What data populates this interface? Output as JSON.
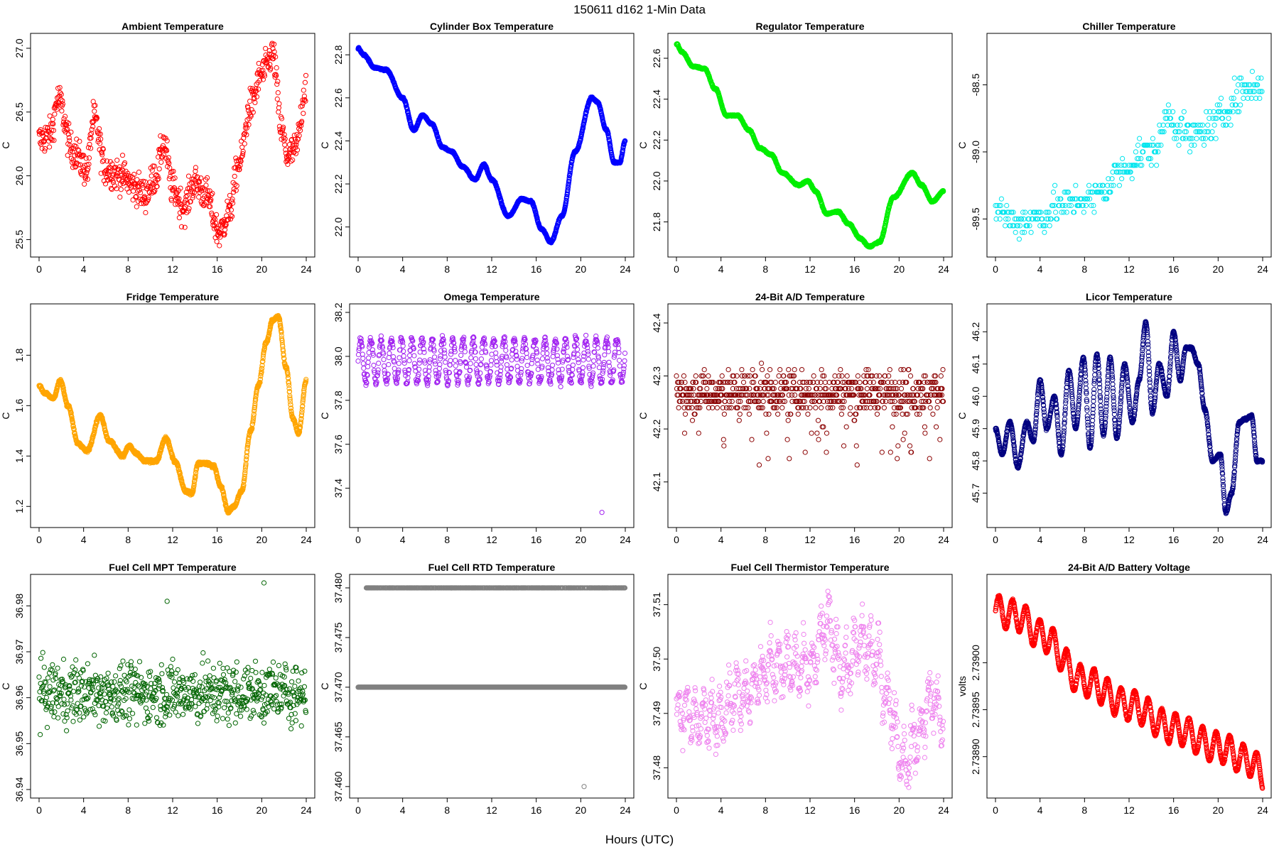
{
  "figure": {
    "title": "150611    d162    1-Min Data",
    "xlabel": "Hours (UTC)"
  },
  "chart_data": [
    {
      "type": "scatter",
      "title": "Ambient Temperature",
      "ylabel": "C",
      "color": "#ff0000",
      "xlim": [
        0,
        24
      ],
      "ylim": [
        25.43,
        27.05
      ],
      "xticks": [
        0,
        4,
        8,
        12,
        16,
        20,
        24
      ],
      "yticks": [
        25.5,
        26.0,
        26.5,
        27.0
      ],
      "ytick_labels": [
        "25.5",
        "26.0",
        "26.5",
        "27.0"
      ],
      "noise": 0.13,
      "density": 1.0,
      "x": [
        0,
        1,
        1.7,
        3,
        4.3,
        4.9,
        6,
        7.5,
        8.5,
        9.5,
        10.5,
        11.2,
        12,
        13,
        14,
        15,
        16.2,
        17,
        18,
        19,
        20,
        21,
        21.8,
        22.3,
        23,
        24
      ],
      "y": [
        26.28,
        26.32,
        26.6,
        26.2,
        26.05,
        26.45,
        26.05,
        26.0,
        25.92,
        25.85,
        26.0,
        26.25,
        25.9,
        25.75,
        25.95,
        25.85,
        25.55,
        25.7,
        26.1,
        26.55,
        26.8,
        26.95,
        26.35,
        26.15,
        26.2,
        26.7
      ]
    },
    {
      "type": "scatter",
      "title": "Cylinder Box Temperature",
      "ylabel": "C",
      "color": "#0000ff",
      "xlim": [
        0,
        24
      ],
      "ylim": [
        21.9,
        22.86
      ],
      "xticks": [
        0,
        4,
        8,
        12,
        16,
        20,
        24
      ],
      "yticks": [
        22.0,
        22.2,
        22.4,
        22.6,
        22.8
      ],
      "ytick_labels": [
        "22.0",
        "22.2",
        "22.4",
        "22.6",
        "22.8"
      ],
      "noise": 0.004,
      "density": 2.0,
      "x": [
        0,
        0.5,
        1.5,
        2.5,
        4,
        5,
        5.8,
        6.6,
        7.6,
        8.4,
        9.4,
        10.5,
        11.3,
        12,
        13.5,
        14.7,
        15.5,
        16.5,
        17.3,
        18.3,
        19.5,
        21,
        21.5,
        22.3,
        23,
        23.5,
        24
      ],
      "y": [
        22.83,
        22.8,
        22.74,
        22.73,
        22.6,
        22.45,
        22.52,
        22.48,
        22.37,
        22.35,
        22.28,
        22.22,
        22.29,
        22.22,
        22.05,
        22.13,
        22.12,
        21.99,
        21.93,
        22.05,
        22.35,
        22.6,
        22.58,
        22.45,
        22.3,
        22.3,
        22.4
      ]
    },
    {
      "type": "scatter",
      "title": "Regulator Temperature",
      "ylabel": "C",
      "color": "#00ee00",
      "xlim": [
        0,
        24
      ],
      "ylim": [
        21.67,
        22.68
      ],
      "xticks": [
        0,
        4,
        8,
        12,
        16,
        20,
        24
      ],
      "yticks": [
        21.8,
        22.0,
        22.2,
        22.4,
        22.6
      ],
      "ytick_labels": [
        "21.8",
        "22.0",
        "22.2",
        "22.4",
        "22.6"
      ],
      "noise": 0.004,
      "density": 2.0,
      "x": [
        0,
        0.5,
        1.5,
        2.5,
        3.5,
        4.5,
        5.5,
        6.5,
        7.5,
        8.5,
        9.5,
        11,
        11.8,
        12.5,
        13.5,
        14.5,
        15.5,
        16.5,
        17.3,
        18.2,
        19.5,
        21.2,
        22,
        23,
        24
      ],
      "y": [
        22.67,
        22.63,
        22.56,
        22.55,
        22.45,
        22.32,
        22.32,
        22.25,
        22.16,
        22.13,
        22.04,
        21.98,
        22.0,
        21.95,
        21.84,
        21.85,
        21.79,
        21.72,
        21.68,
        21.7,
        21.92,
        22.04,
        21.98,
        21.9,
        21.95
      ]
    },
    {
      "type": "scatter",
      "title": "Chiller Temperature",
      "ylabel": "C",
      "color": "#00e5ee",
      "xlim": [
        0,
        24
      ],
      "ylim": [
        -89.72,
        -88.18
      ],
      "xticks": [
        0,
        4,
        8,
        12,
        16,
        20,
        24
      ],
      "yticks": [
        -89.5,
        -89.0,
        -88.5
      ],
      "ytick_labels": [
        "-89.5",
        "-89.0",
        "-88.5"
      ],
      "noise": 0.12,
      "density": 0.55,
      "quantize": 0.05,
      "x": [
        0,
        2,
        3,
        4.5,
        5.5,
        7,
        8.5,
        10,
        11,
        12,
        13,
        14.5,
        15.5,
        16.5,
        17.5,
        18.5,
        19.5,
        20.5,
        21.5,
        22.5,
        24
      ],
      "y": [
        -89.42,
        -89.52,
        -89.5,
        -89.48,
        -89.4,
        -89.38,
        -89.35,
        -89.28,
        -89.15,
        -89.1,
        -89.02,
        -88.98,
        -88.72,
        -88.82,
        -88.9,
        -88.85,
        -88.8,
        -88.72,
        -88.6,
        -88.52,
        -88.52
      ]
    },
    {
      "type": "scatter",
      "title": "Fridge Temperature",
      "ylabel": "C",
      "color": "#ffa500",
      "xlim": [
        0,
        24
      ],
      "ylim": [
        1.15,
        1.97
      ],
      "xticks": [
        0,
        4,
        8,
        12,
        16,
        20,
        24
      ],
      "yticks": [
        1.2,
        1.4,
        1.6,
        1.8
      ],
      "ytick_labels": [
        "1.2",
        "1.4",
        "1.6",
        "1.8"
      ],
      "noise": 0.006,
      "density": 2.0,
      "x": [
        0,
        0.5,
        1.3,
        1.9,
        2.6,
        3.5,
        4.3,
        5.5,
        6.3,
        7.5,
        8.1,
        8.7,
        9.5,
        10.5,
        11.4,
        12.2,
        13.2,
        13.7,
        14.3,
        15,
        15.7,
        16.3,
        17,
        17.5,
        18.2,
        19,
        19.7,
        20.4,
        21,
        21.5,
        22.2,
        22.8,
        23.3,
        24
      ],
      "y": [
        1.68,
        1.65,
        1.63,
        1.7,
        1.6,
        1.45,
        1.42,
        1.56,
        1.46,
        1.4,
        1.44,
        1.41,
        1.38,
        1.38,
        1.47,
        1.38,
        1.26,
        1.25,
        1.37,
        1.37,
        1.36,
        1.28,
        1.18,
        1.2,
        1.26,
        1.5,
        1.68,
        1.85,
        1.94,
        1.95,
        1.75,
        1.55,
        1.49,
        1.7
      ]
    },
    {
      "type": "scatter",
      "title": "Omega Temperature",
      "ylabel": "C",
      "color": "#a020f0",
      "xlim": [
        0,
        24
      ],
      "ylim": [
        37.26,
        38.2
      ],
      "xticks": [
        0,
        4,
        8,
        12,
        16,
        20,
        24
      ],
      "yticks": [
        37.4,
        37.6,
        37.8,
        38.0,
        38.2
      ],
      "ytick_labels": [
        "37.4",
        "37.6",
        "37.8",
        "38.0",
        "38.2"
      ],
      "noise": 0.018,
      "density": 1.3,
      "osc": {
        "amp": 0.1,
        "period": 0.92
      },
      "outliers": [
        [
          21.9,
          37.29
        ]
      ],
      "x": [
        0,
        24
      ],
      "y": [
        37.98,
        37.98
      ]
    },
    {
      "type": "scatter",
      "title": "24-Bit A/D Temperature",
      "ylabel": "C",
      "color": "#8b0000",
      "xlim": [
        0,
        24
      ],
      "ylim": [
        42.03,
        42.42
      ],
      "xticks": [
        0,
        4,
        8,
        12,
        16,
        20,
        24
      ],
      "yticks": [
        42.1,
        42.2,
        42.3,
        42.4
      ],
      "ytick_labels": [
        "42.1",
        "42.2",
        "42.3",
        "42.4"
      ],
      "noise": 0.04,
      "density": 1.3,
      "quantize": 0.012,
      "dips": 0.06,
      "x": [
        0,
        24
      ],
      "y": [
        42.27,
        42.27
      ]
    },
    {
      "type": "scatter",
      "title": "Licor Temperature",
      "ylabel": "C",
      "color": "#000080",
      "xlim": [
        0,
        24
      ],
      "ylim": [
        45.62,
        46.26
      ],
      "xticks": [
        0,
        4,
        8,
        12,
        16,
        20,
        24
      ],
      "yticks": [
        45.7,
        45.8,
        45.9,
        46.0,
        46.1,
        46.2
      ],
      "ytick_labels": [
        "45.7",
        "45.8",
        "45.9",
        "46.0",
        "46.1",
        "46.2"
      ],
      "noise": 0.004,
      "density": 2.0,
      "x": [
        0,
        0.6,
        1.3,
        2,
        2.8,
        3.4,
        4,
        4.6,
        5.3,
        5.9,
        6.6,
        7.2,
        7.9,
        8.5,
        9.1,
        9.7,
        10.3,
        10.9,
        11.6,
        12.3,
        12.9,
        13.5,
        14.1,
        14.7,
        15.4,
        16,
        16.6,
        17.1,
        17.6,
        18.2,
        18.8,
        19.5,
        20.2,
        20.7,
        21.2,
        21.9,
        22.5,
        23,
        23.5,
        24
      ],
      "y": [
        45.9,
        45.82,
        45.92,
        45.78,
        45.92,
        45.86,
        46.05,
        45.9,
        46.0,
        45.82,
        46.08,
        45.9,
        46.12,
        45.84,
        46.13,
        45.88,
        46.12,
        45.87,
        46.1,
        45.92,
        46.05,
        46.23,
        45.95,
        46.1,
        46.0,
        46.2,
        46.05,
        46.15,
        46.15,
        46.1,
        45.96,
        45.8,
        45.82,
        45.64,
        45.7,
        45.92,
        45.93,
        45.94,
        45.8,
        45.8
      ]
    },
    {
      "type": "scatter",
      "title": "Fuel Cell MPT Temperature",
      "ylabel": "C",
      "color": "#006400",
      "xlim": [
        0,
        24
      ],
      "ylim": [
        36.94,
        36.985
      ],
      "xticks": [
        0,
        4,
        8,
        12,
        16,
        20,
        24
      ],
      "yticks": [
        36.94,
        36.95,
        36.96,
        36.97,
        36.98
      ],
      "ytick_labels": [
        "36.94",
        "36.95",
        "36.96",
        "36.97",
        "36.98"
      ],
      "noise": 0.0065,
      "density": 1.0,
      "outliers": [
        [
          20.2,
          36.985
        ],
        [
          11.5,
          36.981
        ]
      ],
      "x": [
        0,
        24
      ],
      "y": [
        36.961,
        36.961
      ]
    },
    {
      "type": "scatter",
      "title": "Fuel Cell RTD Temperature",
      "ylabel": "C",
      "color": "#808080",
      "xlim": [
        0,
        24
      ],
      "ylim": [
        37.4597,
        37.4805
      ],
      "xticks": [
        0,
        4,
        8,
        12,
        16,
        20,
        24
      ],
      "yticks": [
        37.46,
        37.465,
        37.47,
        37.475,
        37.48
      ],
      "ytick_labels": [
        "37.460",
        "37.465",
        "37.470",
        "37.475",
        "37.480"
      ],
      "levels": [
        37.47,
        37.48
      ],
      "level_top_start": 0.6,
      "outliers": [
        [
          20.3,
          37.46
        ]
      ],
      "x": [
        0,
        24
      ],
      "y": [
        37.47,
        37.47
      ]
    },
    {
      "type": "scatter",
      "title": "Fuel Cell Thermistor Temperature",
      "ylabel": "C",
      "color": "#ee82ee",
      "xlim": [
        0,
        24
      ],
      "ylim": [
        37.476,
        37.514
      ],
      "xticks": [
        0,
        4,
        8,
        12,
        16,
        20,
        24
      ],
      "yticks": [
        37.48,
        37.49,
        37.5,
        37.51
      ],
      "ytick_labels": [
        "37.48",
        "37.49",
        "37.50",
        "37.51"
      ],
      "noise": 0.0035,
      "density": 1.2,
      "osc": {
        "amp": 0.004,
        "period": 0.75
      },
      "x": [
        0,
        3,
        6,
        9,
        12,
        13.5,
        15,
        16.7,
        18,
        19,
        20.5,
        21.5,
        23,
        24
      ],
      "y": [
        37.49,
        37.489,
        37.494,
        37.499,
        37.498,
        37.506,
        37.498,
        37.503,
        37.5,
        37.492,
        37.481,
        37.485,
        37.493,
        37.488
      ]
    },
    {
      "type": "scatter",
      "title": "24-Bit A/D Battery Voltage",
      "ylabel": "volts",
      "color": "#ff0000",
      "xlim": [
        0,
        24
      ],
      "ylim": [
        2.738865,
        2.739085
      ],
      "xticks": [
        0,
        4,
        8,
        12,
        16,
        20,
        24
      ],
      "yticks": [
        2.7389,
        2.73895,
        2.739
      ],
      "ytick_labels": [
        "2.73890",
        "2.73895",
        "2.73900"
      ],
      "noise": 1.2e-06,
      "density": 2.0,
      "osc": {
        "amp": 1.6e-05,
        "period": 1.22
      },
      "x": [
        0,
        2,
        4,
        8,
        12,
        16,
        20,
        23,
        24
      ],
      "y": [
        2.739055,
        2.73905,
        2.73903,
        2.73898,
        2.738955,
        2.73893,
        2.73891,
        2.738895,
        2.73888
      ]
    }
  ]
}
